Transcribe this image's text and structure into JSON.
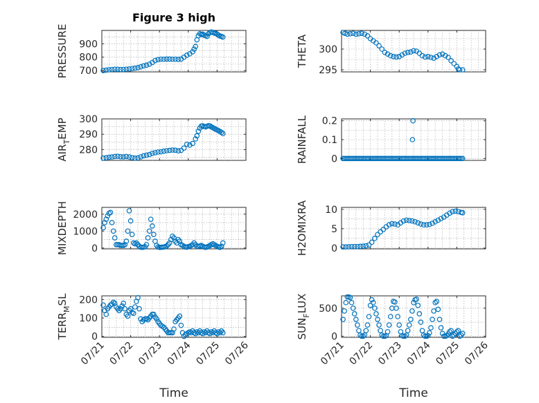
{
  "figure": {
    "title": "Figure 3 high",
    "marker_color": "#0072BD",
    "axis_color": "#262626"
  },
  "chart_data": [
    {
      "id": "pressure",
      "type": "scatter",
      "title": "Figure 3 high",
      "ylabel": "PRESSURE",
      "ylabel_sub": "",
      "ylabel_tail": "",
      "xlabel": "",
      "grid": true,
      "xlim": [
        0,
        5
      ],
      "ylim": [
        690,
        1000
      ],
      "yticks": [
        700,
        800,
        900
      ],
      "xticks": [],
      "x": [
        0.05,
        0.15,
        0.25,
        0.35,
        0.45,
        0.55,
        0.65,
        0.75,
        0.85,
        0.95,
        1.05,
        1.15,
        1.25,
        1.35,
        1.45,
        1.55,
        1.65,
        1.75,
        1.85,
        1.95,
        2.05,
        2.15,
        2.25,
        2.35,
        2.45,
        2.55,
        2.65,
        2.75,
        2.85,
        2.95,
        3.05,
        3.15,
        3.2,
        3.25,
        3.3,
        3.35,
        3.4,
        3.45,
        3.5,
        3.55,
        3.6,
        3.65,
        3.7,
        3.75,
        3.8,
        3.85,
        3.9,
        3.95,
        4.0,
        4.05,
        4.1,
        4.15,
        4.2
      ],
      "y": [
        700,
        703,
        706,
        708,
        710,
        710,
        708,
        708,
        710,
        712,
        715,
        718,
        722,
        728,
        735,
        740,
        748,
        760,
        775,
        782,
        785,
        785,
        786,
        786,
        785,
        785,
        784,
        786,
        800,
        815,
        825,
        840,
        860,
        880,
        930,
        960,
        975,
        970,
        972,
        965,
        960,
        955,
        975,
        985,
        988,
        985,
        980,
        978,
        972,
        965,
        958,
        955,
        950
      ]
    },
    {
      "id": "theta",
      "type": "scatter",
      "ylabel": "THETA",
      "ylabel_sub": "",
      "ylabel_tail": "",
      "xlabel": "",
      "grid": true,
      "xlim": [
        0,
        5
      ],
      "ylim": [
        294.5,
        304.5
      ],
      "yticks": [
        295,
        300
      ],
      "xticks": [],
      "x": [
        0.05,
        0.12,
        0.2,
        0.3,
        0.4,
        0.5,
        0.6,
        0.7,
        0.8,
        0.9,
        1.0,
        1.1,
        1.2,
        1.3,
        1.4,
        1.5,
        1.6,
        1.7,
        1.8,
        1.9,
        2.0,
        2.1,
        2.2,
        2.3,
        2.4,
        2.5,
        2.6,
        2.7,
        2.8,
        2.9,
        3.0,
        3.1,
        3.2,
        3.3,
        3.4,
        3.5,
        3.6,
        3.7,
        3.8,
        3.9,
        4.0,
        4.05,
        4.1,
        4.2
      ],
      "y": [
        304,
        303.8,
        303.6,
        303.7,
        303.8,
        303.6,
        303.7,
        303.8,
        303.6,
        303.2,
        302.5,
        302,
        301.5,
        300.8,
        300,
        299.2,
        298.8,
        298.4,
        298.2,
        298.1,
        298.2,
        298.6,
        299,
        299.2,
        299.3,
        299.6,
        299.5,
        299,
        298.4,
        298.1,
        298.2,
        298,
        297.8,
        298.2,
        298.6,
        298.8,
        298.4,
        298,
        297.2,
        296.5,
        295.8,
        295.2,
        295,
        295
      ]
    },
    {
      "id": "air_temp",
      "type": "scatter",
      "ylabel": "AIR",
      "ylabel_sub": "T",
      "ylabel_tail": "EMP",
      "xlabel": "",
      "grid": true,
      "xlim": [
        0,
        5
      ],
      "ylim": [
        273,
        300
      ],
      "yticks": [
        280,
        290,
        300
      ],
      "xticks": [],
      "x": [
        0.05,
        0.15,
        0.25,
        0.35,
        0.45,
        0.55,
        0.65,
        0.75,
        0.85,
        0.95,
        1.05,
        1.15,
        1.25,
        1.35,
        1.45,
        1.55,
        1.65,
        1.75,
        1.85,
        1.95,
        2.05,
        2.15,
        2.25,
        2.35,
        2.45,
        2.55,
        2.65,
        2.75,
        2.85,
        2.95,
        3.05,
        3.15,
        3.25,
        3.3,
        3.35,
        3.4,
        3.45,
        3.5,
        3.55,
        3.6,
        3.65,
        3.7,
        3.75,
        3.8,
        3.85,
        3.9,
        3.95,
        4.0,
        4.05,
        4.1,
        4.15,
        4.2
      ],
      "y": [
        274.5,
        274.7,
        275,
        275.2,
        275.5,
        275.6,
        275.4,
        275.3,
        275.5,
        275.2,
        274.8,
        274.5,
        274.6,
        275.3,
        276,
        276.4,
        276.8,
        277.6,
        278,
        278.4,
        278.6,
        279,
        279.3,
        279.5,
        279.7,
        279.6,
        279.2,
        279.5,
        281,
        283.5,
        283,
        284,
        287,
        289,
        292,
        294,
        295.3,
        295.5,
        295,
        294.8,
        295.2,
        295.6,
        295.4,
        294.8,
        294.3,
        293.8,
        293.2,
        292.8,
        292.3,
        291.8,
        291.2,
        290.5
      ]
    },
    {
      "id": "rainfall",
      "type": "scatter",
      "ylabel": "RAINFALL",
      "ylabel_sub": "",
      "ylabel_tail": "",
      "xlabel": "",
      "grid": true,
      "xlim": [
        0,
        5
      ],
      "ylim": [
        -0.01,
        0.21
      ],
      "yticks": [
        0,
        0.1,
        0.2
      ],
      "xticks": [],
      "x": [
        0.05,
        0.1,
        0.15,
        0.2,
        0.25,
        0.3,
        0.35,
        0.4,
        0.45,
        0.5,
        0.55,
        0.6,
        0.65,
        0.7,
        0.75,
        0.8,
        0.85,
        0.9,
        0.95,
        1.0,
        1.05,
        1.1,
        1.15,
        1.2,
        1.25,
        1.3,
        1.35,
        1.4,
        1.45,
        1.5,
        1.55,
        1.6,
        1.65,
        1.7,
        1.75,
        1.8,
        1.85,
        1.9,
        1.95,
        2.0,
        2.05,
        2.1,
        2.15,
        2.2,
        2.25,
        2.3,
        2.35,
        2.4,
        2.45,
        2.5,
        2.55,
        2.6,
        2.65,
        2.7,
        2.75,
        2.8,
        2.85,
        2.9,
        2.95,
        3.0,
        3.05,
        3.1,
        3.15,
        3.2,
        3.25,
        3.3,
        3.35,
        3.4,
        3.45,
        3.5,
        3.55,
        3.6,
        3.65,
        3.7,
        3.75,
        3.8,
        3.85,
        3.9,
        3.95,
        4.0,
        4.05,
        4.1,
        4.15,
        4.2,
        2.48,
        2.46
      ],
      "y": [
        0,
        0,
        0,
        0,
        0,
        0,
        0,
        0,
        0,
        0,
        0,
        0,
        0,
        0,
        0,
        0,
        0,
        0,
        0,
        0,
        0,
        0,
        0,
        0,
        0,
        0,
        0,
        0,
        0,
        0,
        0,
        0,
        0,
        0,
        0,
        0,
        0,
        0,
        0,
        0,
        0,
        0,
        0,
        0,
        0,
        0,
        0,
        0,
        0,
        0,
        0,
        0,
        0,
        0,
        0,
        0,
        0,
        0,
        0,
        0,
        0,
        0,
        0,
        0,
        0,
        0,
        0,
        0,
        0,
        0,
        0,
        0,
        0,
        0,
        0,
        0,
        0,
        0,
        0,
        0,
        0,
        0,
        0,
        0,
        0.2,
        0.1
      ]
    },
    {
      "id": "mixdepth",
      "type": "scatter",
      "ylabel": "MIXDEPTH",
      "ylabel_sub": "",
      "ylabel_tail": "",
      "xlabel": "",
      "grid": true,
      "xlim": [
        0,
        5
      ],
      "ylim": [
        -50,
        2400
      ],
      "yticks": [
        0,
        1000,
        2000
      ],
      "xticks": [],
      "x": [
        0.05,
        0.1,
        0.15,
        0.2,
        0.25,
        0.3,
        0.35,
        0.4,
        0.45,
        0.5,
        0.55,
        0.6,
        0.65,
        0.7,
        0.75,
        0.8,
        0.85,
        0.9,
        0.95,
        1.0,
        1.05,
        1.1,
        1.15,
        1.2,
        1.25,
        1.3,
        1.35,
        1.4,
        1.45,
        1.5,
        1.55,
        1.6,
        1.65,
        1.7,
        1.75,
        1.8,
        1.85,
        1.9,
        1.95,
        2.0,
        2.05,
        2.1,
        2.15,
        2.2,
        2.25,
        2.3,
        2.35,
        2.4,
        2.45,
        2.5,
        2.55,
        2.6,
        2.65,
        2.7,
        2.75,
        2.8,
        2.85,
        2.9,
        2.95,
        3.0,
        3.05,
        3.1,
        3.15,
        3.2,
        3.25,
        3.3,
        3.35,
        3.4,
        3.45,
        3.5,
        3.55,
        3.6,
        3.65,
        3.7,
        3.75,
        3.8,
        3.85,
        3.9,
        3.95,
        4.0,
        4.05,
        4.1,
        4.15,
        4.2
      ],
      "y": [
        1200,
        1500,
        1700,
        1900,
        2050,
        2100,
        1500,
        1000,
        600,
        200,
        200,
        200,
        150,
        150,
        150,
        200,
        400,
        1000,
        2200,
        1600,
        800,
        300,
        250,
        300,
        200,
        100,
        50,
        40,
        50,
        80,
        200,
        600,
        1000,
        1700,
        1300,
        800,
        400,
        150,
        60,
        40,
        40,
        50,
        60,
        80,
        120,
        200,
        300,
        500,
        700,
        600,
        400,
        300,
        500,
        400,
        200,
        150,
        100,
        60,
        50,
        80,
        100,
        150,
        200,
        300,
        200,
        100,
        100,
        120,
        150,
        100,
        60,
        40,
        60,
        100,
        150,
        200,
        250,
        200,
        150,
        100,
        60,
        40,
        100,
        300
      ]
    },
    {
      "id": "h2omixra",
      "type": "scatter",
      "ylabel": "H2OMIXRA",
      "ylabel_sub": "",
      "ylabel_tail": "",
      "xlabel": "",
      "grid": true,
      "xlim": [
        0,
        5
      ],
      "ylim": [
        -0.2,
        10.5
      ],
      "yticks": [
        0,
        5,
        10
      ],
      "xticks": [],
      "x": [
        0.05,
        0.15,
        0.25,
        0.35,
        0.45,
        0.55,
        0.65,
        0.75,
        0.85,
        0.95,
        1.05,
        1.15,
        1.25,
        1.35,
        1.45,
        1.55,
        1.65,
        1.75,
        1.85,
        1.95,
        2.05,
        2.15,
        2.25,
        2.35,
        2.45,
        2.55,
        2.65,
        2.75,
        2.85,
        2.95,
        3.05,
        3.15,
        3.25,
        3.35,
        3.45,
        3.55,
        3.65,
        3.75,
        3.85,
        3.95,
        4.05,
        4.15,
        4.2
      ],
      "y": [
        0.3,
        0.3,
        0.35,
        0.4,
        0.4,
        0.4,
        0.45,
        0.5,
        0.6,
        0.8,
        1.5,
        2.5,
        3.5,
        4.2,
        4.8,
        5.5,
        6.0,
        6.3,
        6.2,
        6.0,
        6.5,
        7.0,
        7.2,
        7.1,
        7.0,
        6.8,
        6.5,
        6.2,
        6.0,
        6.0,
        6.1,
        6.4,
        6.8,
        7.2,
        7.6,
        8.0,
        8.5,
        9.0,
        9.4,
        9.5,
        9.4,
        9.2,
        9.1
      ]
    },
    {
      "id": "terr_msl",
      "type": "scatter",
      "ylabel": "TERR",
      "ylabel_sub": "M",
      "ylabel_tail": "SL",
      "xlabel": "Time",
      "grid": true,
      "xlim": [
        0,
        5
      ],
      "ylim": [
        -5,
        220
      ],
      "yticks": [
        0,
        100,
        200
      ],
      "xticks": [
        "07/21",
        "07/22",
        "07/23",
        "07/24",
        "07/25",
        "07/26"
      ],
      "x": [
        0.05,
        0.1,
        0.15,
        0.2,
        0.25,
        0.3,
        0.35,
        0.4,
        0.45,
        0.5,
        0.55,
        0.6,
        0.65,
        0.7,
        0.75,
        0.8,
        0.85,
        0.9,
        0.95,
        1.0,
        1.05,
        1.1,
        1.15,
        1.2,
        1.25,
        1.3,
        1.35,
        1.4,
        1.45,
        1.5,
        1.55,
        1.6,
        1.65,
        1.7,
        1.75,
        1.8,
        1.85,
        1.9,
        1.95,
        2.0,
        2.05,
        2.1,
        2.15,
        2.2,
        2.25,
        2.3,
        2.35,
        2.4,
        2.45,
        2.5,
        2.55,
        2.6,
        2.65,
        2.7,
        2.75,
        2.8,
        2.85,
        2.9,
        2.95,
        3.0,
        3.05,
        3.1,
        3.15,
        3.2,
        3.25,
        3.3,
        3.35,
        3.4,
        3.45,
        3.5,
        3.55,
        3.6,
        3.65,
        3.7,
        3.75,
        3.8,
        3.85,
        3.9,
        3.95,
        4.0,
        4.05,
        4.1,
        4.15,
        4.2
      ],
      "y": [
        170,
        140,
        120,
        150,
        160,
        170,
        175,
        185,
        180,
        160,
        150,
        140,
        150,
        165,
        180,
        150,
        120,
        110,
        140,
        150,
        130,
        125,
        160,
        190,
        210,
        150,
        95,
        80,
        90,
        95,
        95,
        90,
        100,
        110,
        120,
        120,
        105,
        95,
        80,
        70,
        60,
        55,
        50,
        40,
        30,
        20,
        20,
        20,
        20,
        40,
        80,
        90,
        100,
        110,
        60,
        20,
        0,
        10,
        15,
        20,
        25,
        20,
        30,
        20,
        15,
        25,
        20,
        30,
        20,
        15,
        25,
        20,
        30,
        20,
        15,
        25,
        20,
        30,
        20,
        15,
        25,
        20,
        30,
        20
      ]
    },
    {
      "id": "sun_flux",
      "type": "scatter",
      "ylabel": "SUN",
      "ylabel_sub": "F",
      "ylabel_tail": "LUX",
      "xlabel": "Time",
      "grid": true,
      "xlim": [
        0,
        5
      ],
      "ylim": [
        -20,
        720
      ],
      "yticks": [
        0,
        500
      ],
      "xticks": [
        "07/21",
        "07/22",
        "07/23",
        "07/24",
        "07/25",
        "07/26"
      ],
      "x": [
        0.05,
        0.1,
        0.15,
        0.2,
        0.25,
        0.3,
        0.35,
        0.4,
        0.45,
        0.5,
        0.55,
        0.6,
        0.65,
        0.7,
        0.75,
        0.8,
        0.85,
        0.9,
        0.95,
        1.0,
        1.05,
        1.1,
        1.15,
        1.2,
        1.25,
        1.3,
        1.35,
        1.4,
        1.45,
        1.5,
        1.55,
        1.6,
        1.65,
        1.7,
        1.75,
        1.8,
        1.85,
        1.9,
        1.95,
        2.0,
        2.05,
        2.1,
        2.15,
        2.2,
        2.25,
        2.3,
        2.35,
        2.4,
        2.45,
        2.5,
        2.55,
        2.6,
        2.65,
        2.7,
        2.75,
        2.8,
        2.85,
        2.9,
        2.95,
        3.0,
        3.05,
        3.1,
        3.15,
        3.2,
        3.25,
        3.3,
        3.35,
        3.4,
        3.45,
        3.5,
        3.55,
        3.6,
        3.65,
        3.7,
        3.75,
        3.8,
        3.85,
        3.9,
        3.95,
        4.0,
        4.05,
        4.1,
        4.15,
        4.2
      ],
      "y": [
        300,
        450,
        600,
        700,
        700,
        690,
        600,
        500,
        400,
        300,
        200,
        100,
        20,
        0,
        0,
        20,
        100,
        200,
        350,
        550,
        650,
        600,
        500,
        400,
        300,
        200,
        100,
        20,
        0,
        0,
        10,
        80,
        200,
        350,
        500,
        620,
        610,
        500,
        350,
        200,
        80,
        10,
        0,
        0,
        20,
        100,
        200,
        300,
        450,
        600,
        650,
        660,
        550,
        400,
        250,
        100,
        20,
        0,
        0,
        10,
        60,
        150,
        300,
        450,
        600,
        620,
        480,
        300,
        150,
        50,
        0,
        0,
        10,
        40,
        80,
        100,
        0,
        20,
        50,
        80,
        100,
        0,
        20,
        50
      ]
    }
  ]
}
